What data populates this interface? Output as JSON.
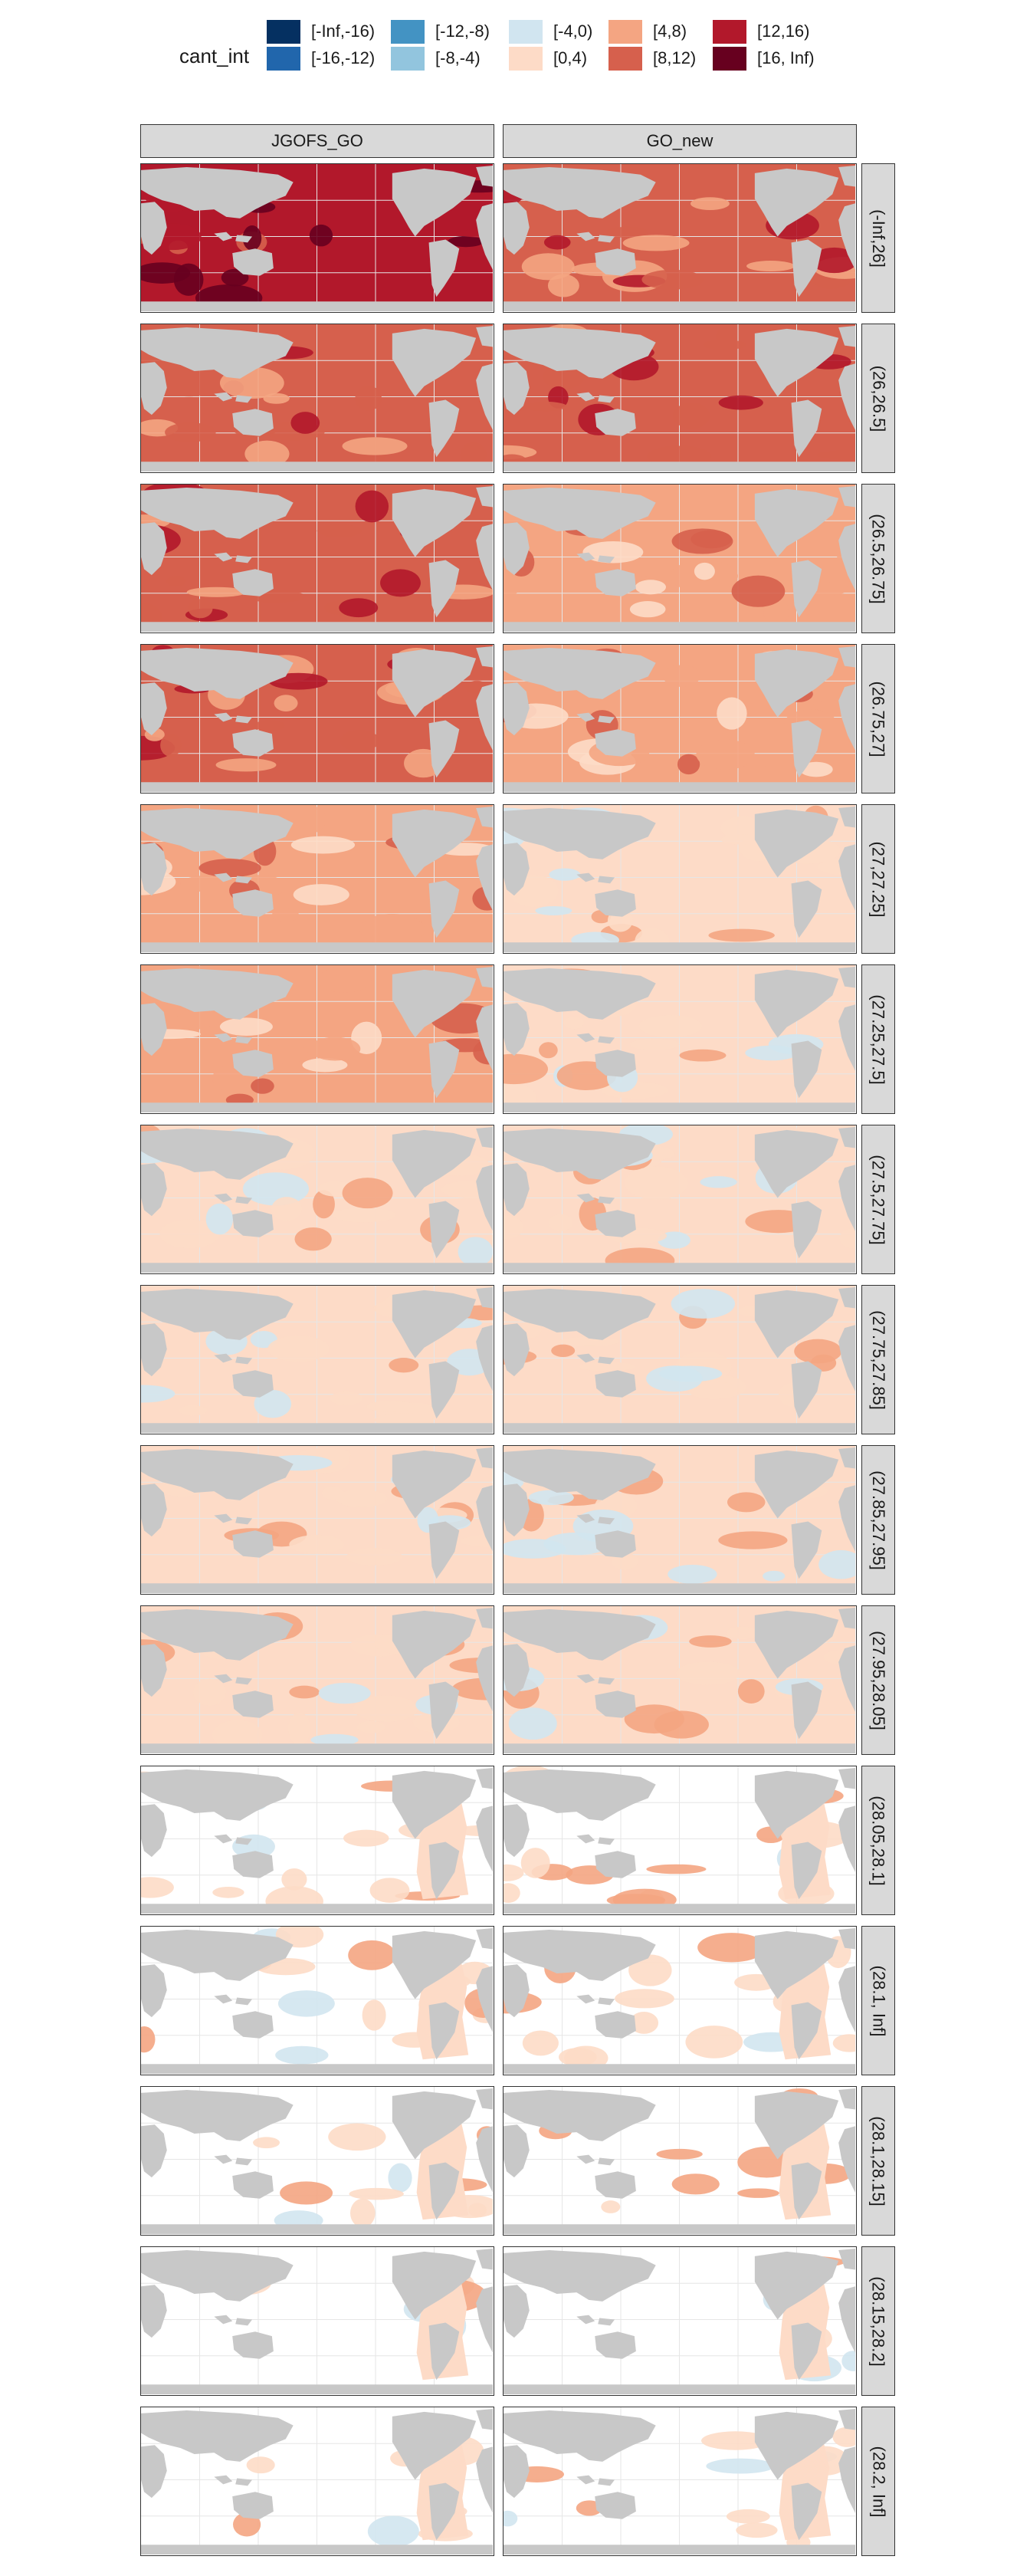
{
  "legend": {
    "title": "cant_int",
    "items": [
      {
        "label": "[-Inf,-16)",
        "color": "#053061"
      },
      {
        "label": "[-16,-12)",
        "color": "#2166ac"
      },
      {
        "label": "[-12,-8)",
        "color": "#4393c3"
      },
      {
        "label": "[-8,-4)",
        "color": "#92c5de"
      },
      {
        "label": "[-4,0)",
        "color": "#d1e5f0"
      },
      {
        "label": "[0,4)",
        "color": "#fddbc7"
      },
      {
        "label": "[4,8)",
        "color": "#f4a582"
      },
      {
        "label": "[8,12)",
        "color": "#d6604d"
      },
      {
        "label": "[12,16)",
        "color": "#b2182b"
      },
      {
        "label": "[16, Inf)",
        "color": "#67001f"
      }
    ]
  },
  "columns": [
    "JGOFS_GO",
    "GO_new"
  ],
  "rows": [
    "(-Inf,26]",
    "(26,26.5]",
    "(26.5,26.75]",
    "(26.75,27]",
    "(27,27.25]",
    "(27.25,27.5]",
    "(27.5,27.75]",
    "(27.75,27.85]",
    "(27.85,27.95]",
    "(27.95,28.05]",
    "(28.05,28.1]",
    "(28.1, Inf]",
    "(28.1,28.15]",
    "(28.15,28.2]",
    "(28.2, Inf]"
  ],
  "colors": {
    "land": "#c8c8c8",
    "missing": "#ffffff",
    "strip_bg": "#d9d9d9",
    "grid": "#e6e6e6"
  },
  "panel_dominant_class": [
    [
      "[12,16)",
      "[8,12)"
    ],
    [
      "[8,12)",
      "[8,12)"
    ],
    [
      "[8,12)",
      "[4,8)"
    ],
    [
      "[8,12)",
      "[4,8)"
    ],
    [
      "[4,8)",
      "[0,4)"
    ],
    [
      "[4,8)",
      "[0,4)"
    ],
    [
      "[0,4)",
      "[0,4)"
    ],
    [
      "[0,4)",
      "[0,4)"
    ],
    [
      "[0,4)",
      "[0,4)"
    ],
    [
      "[0,4)",
      "[0,4)"
    ],
    [
      "[0,4)",
      "[0,4)"
    ],
    [
      "[0,4)",
      "[0,4)"
    ],
    [
      "[0,4)",
      "[0,4)"
    ],
    [
      "[0,4)",
      "[0,4)"
    ],
    [
      "[0,4)",
      "[0,4)"
    ]
  ],
  "ocean_coverage": [
    1,
    1,
    1,
    1,
    1,
    1,
    1,
    1,
    1,
    1,
    0.9,
    0.85,
    0.35,
    0.25,
    0.2
  ]
}
